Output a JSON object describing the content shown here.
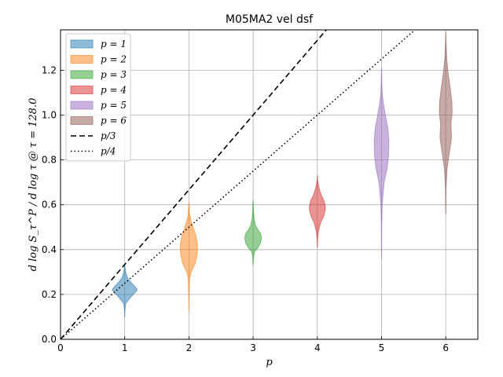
{
  "chart_data": {
    "type": "violin",
    "title": "M05MA2 vel dsf",
    "xlabel": "p",
    "ylabel": "d log S_τ^P / d log τ @ τ = 128.0",
    "xlim": [
      0,
      6.5
    ],
    "ylim": [
      0,
      1.38
    ],
    "xticks": [
      0,
      1,
      2,
      3,
      4,
      5,
      6
    ],
    "yticks": [
      0.0,
      0.2,
      0.4,
      0.6,
      0.8,
      1.0,
      1.2
    ],
    "grid": true,
    "legend_position": "top-left",
    "series": [
      {
        "name": "p = 1",
        "x": 1,
        "color": "#1f77b4",
        "alpha": 0.5,
        "profile": [
          [
            0.1,
            0.002
          ],
          [
            0.13,
            0.008
          ],
          [
            0.16,
            0.03
          ],
          [
            0.19,
            0.2
          ],
          [
            0.21,
            0.33
          ],
          [
            0.22,
            0.39
          ],
          [
            0.23,
            0.35
          ],
          [
            0.25,
            0.22
          ],
          [
            0.27,
            0.1
          ],
          [
            0.29,
            0.05
          ],
          [
            0.3,
            0.03
          ],
          [
            0.32,
            0.01
          ],
          [
            0.33,
            0.002
          ]
        ]
      },
      {
        "name": "p = 2",
        "x": 2,
        "color": "#ff7f0e",
        "alpha": 0.5,
        "profile": [
          [
            0.12,
            0.002
          ],
          [
            0.2,
            0.008
          ],
          [
            0.27,
            0.02
          ],
          [
            0.3,
            0.07
          ],
          [
            0.34,
            0.2
          ],
          [
            0.38,
            0.26
          ],
          [
            0.42,
            0.27
          ],
          [
            0.46,
            0.22
          ],
          [
            0.5,
            0.13
          ],
          [
            0.53,
            0.06
          ],
          [
            0.56,
            0.02
          ],
          [
            0.59,
            0.01
          ],
          [
            0.61,
            0.002
          ]
        ]
      },
      {
        "name": "p = 3",
        "x": 3,
        "color": "#2ca02c",
        "alpha": 0.5,
        "profile": [
          [
            0.33,
            0.002
          ],
          [
            0.36,
            0.01
          ],
          [
            0.39,
            0.04
          ],
          [
            0.41,
            0.16
          ],
          [
            0.43,
            0.23
          ],
          [
            0.45,
            0.26
          ],
          [
            0.47,
            0.24
          ],
          [
            0.49,
            0.14
          ],
          [
            0.51,
            0.07
          ],
          [
            0.54,
            0.03
          ],
          [
            0.57,
            0.015
          ],
          [
            0.6,
            0.008
          ],
          [
            0.62,
            0.002
          ]
        ]
      },
      {
        "name": "p = 4",
        "x": 4,
        "color": "#d62728",
        "alpha": 0.5,
        "profile": [
          [
            0.41,
            0.002
          ],
          [
            0.45,
            0.01
          ],
          [
            0.48,
            0.03
          ],
          [
            0.52,
            0.1
          ],
          [
            0.55,
            0.2
          ],
          [
            0.58,
            0.25
          ],
          [
            0.6,
            0.24
          ],
          [
            0.62,
            0.2
          ],
          [
            0.64,
            0.13
          ],
          [
            0.66,
            0.08
          ],
          [
            0.69,
            0.03
          ],
          [
            0.71,
            0.01
          ],
          [
            0.73,
            0.002
          ]
        ]
      },
      {
        "name": "p = 5",
        "x": 5,
        "color": "#9467bd",
        "alpha": 0.5,
        "profile": [
          [
            0.36,
            0.002
          ],
          [
            0.5,
            0.006
          ],
          [
            0.6,
            0.02
          ],
          [
            0.7,
            0.08
          ],
          [
            0.76,
            0.17
          ],
          [
            0.82,
            0.22
          ],
          [
            0.88,
            0.23
          ],
          [
            0.94,
            0.2
          ],
          [
            1.0,
            0.12
          ],
          [
            1.05,
            0.06
          ],
          [
            1.1,
            0.02
          ],
          [
            1.16,
            0.008
          ],
          [
            1.21,
            0.002
          ]
        ]
      },
      {
        "name": "p = 6",
        "x": 6,
        "color": "#8c564b",
        "alpha": 0.5,
        "profile": [
          [
            0.56,
            0.002
          ],
          [
            0.68,
            0.01
          ],
          [
            0.76,
            0.04
          ],
          [
            0.84,
            0.12
          ],
          [
            0.9,
            0.18
          ],
          [
            0.96,
            0.16
          ],
          [
            1.01,
            0.2
          ],
          [
            1.06,
            0.19
          ],
          [
            1.12,
            0.14
          ],
          [
            1.18,
            0.08
          ],
          [
            1.25,
            0.03
          ],
          [
            1.32,
            0.01
          ],
          [
            1.37,
            0.002
          ]
        ]
      }
    ],
    "reference_lines": [
      {
        "name": "p/3",
        "slope": 0.3333,
        "style": "dashed",
        "color": "#000000"
      },
      {
        "name": "p/4",
        "slope": 0.25,
        "style": "dotted",
        "color": "#000000"
      }
    ]
  }
}
